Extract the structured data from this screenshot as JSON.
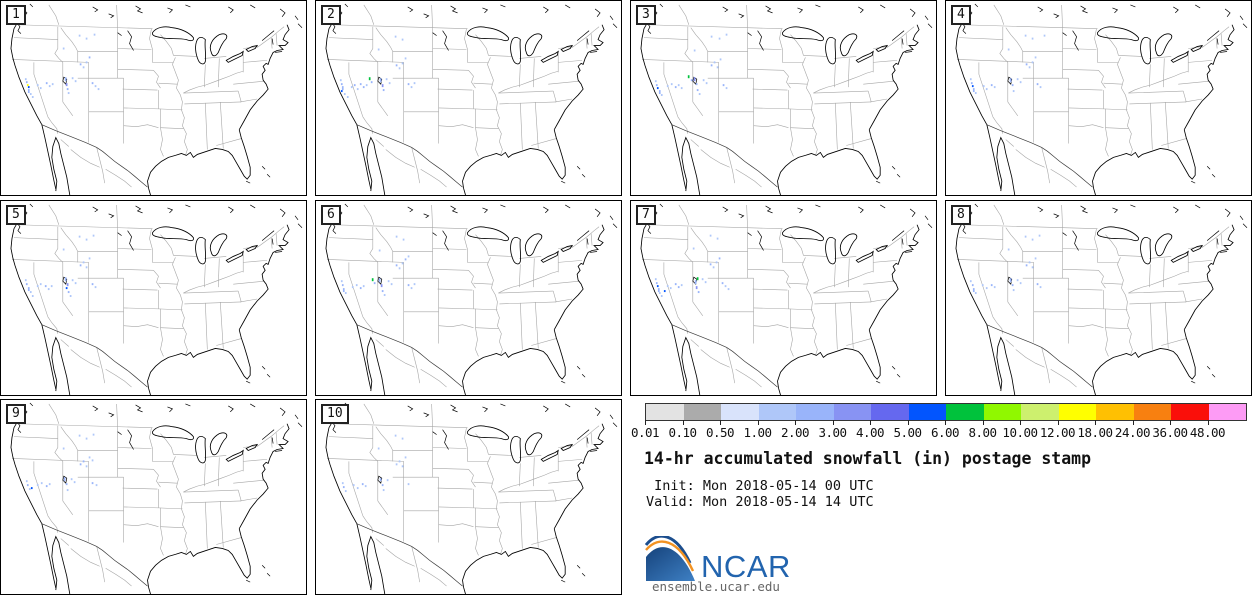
{
  "title": "14-hr accumulated snowfall (in) postage stamp",
  "times": {
    "init": " Init: Mon 2018-05-14 00 UTC",
    "valid": "Valid: Mon 2018-05-14 14 UTC"
  },
  "logo": {
    "text": "NCAR",
    "url": "ensemble.ucar.edu",
    "blue": "#2264AE",
    "dark_blue": "#16437C",
    "orange": "#F29222"
  },
  "colorbar": {
    "units": "in",
    "ticks": [
      "0.01",
      "0.10",
      "0.50",
      "1.00",
      "2.00",
      "3.00",
      "4.00",
      "5.00",
      "6.00",
      "8.00",
      "10.00",
      "12.00",
      "18.00",
      "24.00",
      "36.00",
      "48.00"
    ],
    "colors": [
      "#E3E3E3",
      "#ABABAB",
      "#D9E3FB",
      "#AFC7F9",
      "#99B4FA",
      "#8893F3",
      "#6568EF",
      "#0255FE",
      "#00C23C",
      "#90F800",
      "#CDF06E",
      "#FFFF00",
      "#FFC002",
      "#F88010",
      "#FA0F0A",
      "#FD9BF5"
    ]
  },
  "panels": [
    {
      "label": "1",
      "snow": [
        [
          24,
          78,
          3
        ],
        [
          25,
          81,
          4
        ],
        [
          26,
          84,
          11
        ],
        [
          27,
          86,
          7
        ],
        [
          27,
          89,
          4,
          4
        ],
        [
          29,
          93,
          3
        ],
        [
          31,
          96,
          3
        ],
        [
          36,
          84,
          3
        ],
        [
          39,
          87,
          3
        ],
        [
          45,
          82,
          4
        ],
        [
          48,
          85,
          3
        ],
        [
          51,
          83,
          3
        ],
        [
          64,
          77,
          4,
          4
        ],
        [
          65,
          83,
          5,
          3
        ],
        [
          66,
          88,
          4
        ],
        [
          67,
          92,
          3
        ],
        [
          71,
          77,
          3
        ],
        [
          74,
          80,
          3
        ],
        [
          79,
          63,
          4
        ],
        [
          82,
          66,
          3
        ],
        [
          85,
          61,
          3
        ],
        [
          88,
          56,
          4
        ],
        [
          78,
          34,
          3
        ],
        [
          85,
          37,
          3
        ],
        [
          93,
          33,
          3
        ],
        [
          62,
          47,
          3
        ],
        [
          91,
          82,
          4
        ],
        [
          94,
          85,
          3
        ],
        [
          97,
          88,
          3
        ]
      ]
    },
    {
      "label": "2",
      "snow": [
        [
          24,
          79,
          3
        ],
        [
          25,
          83,
          4
        ],
        [
          26,
          86,
          4,
          4
        ],
        [
          25,
          90,
          7
        ],
        [
          28,
          93,
          3
        ],
        [
          31,
          96,
          3
        ],
        [
          35,
          86,
          3
        ],
        [
          38,
          84,
          4
        ],
        [
          41,
          88,
          3
        ],
        [
          44,
          83,
          4
        ],
        [
          47,
          86,
          4
        ],
        [
          50,
          84,
          3
        ],
        [
          53,
          77,
          8,
          3
        ],
        [
          55,
          81,
          4
        ],
        [
          64,
          78,
          4,
          4
        ],
        [
          66,
          84,
          5,
          3
        ],
        [
          67,
          89,
          4
        ],
        [
          70,
          78,
          3
        ],
        [
          73,
          82,
          3
        ],
        [
          80,
          64,
          4
        ],
        [
          83,
          67,
          3
        ],
        [
          86,
          62,
          3
        ],
        [
          89,
          57,
          3
        ],
        [
          79,
          35,
          3
        ],
        [
          86,
          38,
          3
        ],
        [
          62,
          48,
          3
        ],
        [
          92,
          83,
          4
        ],
        [
          95,
          86,
          3
        ],
        [
          98,
          82,
          3
        ]
      ]
    },
    {
      "label": "3",
      "snow": [
        [
          24,
          80,
          3
        ],
        [
          25,
          84,
          4
        ],
        [
          26,
          87,
          7
        ],
        [
          28,
          90,
          4,
          4
        ],
        [
          30,
          94,
          3
        ],
        [
          36,
          85,
          3
        ],
        [
          40,
          83,
          3
        ],
        [
          44,
          86,
          4
        ],
        [
          47,
          84,
          3
        ],
        [
          50,
          87,
          3
        ],
        [
          57,
          75,
          8,
          3
        ],
        [
          60,
          79,
          4
        ],
        [
          63,
          77,
          5,
          4
        ],
        [
          65,
          83,
          4
        ],
        [
          66,
          89,
          4
        ],
        [
          68,
          93,
          3
        ],
        [
          72,
          79,
          3
        ],
        [
          75,
          82,
          3
        ],
        [
          80,
          64,
          4
        ],
        [
          83,
          61,
          3
        ],
        [
          86,
          66,
          3
        ],
        [
          89,
          58,
          3
        ],
        [
          80,
          35,
          3
        ],
        [
          88,
          37,
          3
        ],
        [
          95,
          33,
          3
        ],
        [
          63,
          49,
          3
        ],
        [
          92,
          84,
          4
        ],
        [
          95,
          87,
          3
        ]
      ]
    },
    {
      "label": "4",
      "snow": [
        [
          24,
          78,
          3
        ],
        [
          25,
          82,
          4
        ],
        [
          26,
          85,
          7
        ],
        [
          27,
          88,
          4,
          4
        ],
        [
          29,
          92,
          3
        ],
        [
          37,
          85,
          3
        ],
        [
          40,
          88,
          3
        ],
        [
          45,
          84,
          4
        ],
        [
          48,
          86,
          3
        ],
        [
          64,
          78,
          4,
          4
        ],
        [
          66,
          84,
          4
        ],
        [
          67,
          90,
          3
        ],
        [
          71,
          78,
          3
        ],
        [
          74,
          81,
          3
        ],
        [
          80,
          63,
          4
        ],
        [
          83,
          66,
          3
        ],
        [
          86,
          61,
          3
        ],
        [
          89,
          56,
          3
        ],
        [
          79,
          34,
          3
        ],
        [
          86,
          37,
          3
        ],
        [
          62,
          48,
          3
        ],
        [
          91,
          83,
          4
        ],
        [
          94,
          86,
          3
        ],
        [
          98,
          34,
          3
        ]
      ]
    },
    {
      "label": "5",
      "snow": [
        [
          24,
          79,
          3
        ],
        [
          25,
          83,
          4
        ],
        [
          27,
          87,
          4,
          4
        ],
        [
          29,
          91,
          3
        ],
        [
          31,
          95,
          3
        ],
        [
          36,
          85,
          3
        ],
        [
          39,
          83,
          3
        ],
        [
          44,
          85,
          4
        ],
        [
          47,
          88,
          3
        ],
        [
          50,
          85,
          3
        ],
        [
          64,
          77,
          4,
          4
        ],
        [
          65,
          87,
          7
        ],
        [
          66,
          83,
          5,
          3
        ],
        [
          67,
          91,
          4
        ],
        [
          69,
          95,
          3
        ],
        [
          71,
          79,
          3
        ],
        [
          74,
          82,
          3
        ],
        [
          79,
          64,
          4
        ],
        [
          82,
          61,
          3
        ],
        [
          85,
          66,
          3
        ],
        [
          88,
          57,
          3
        ],
        [
          78,
          35,
          3
        ],
        [
          85,
          38,
          3
        ],
        [
          92,
          34,
          3
        ],
        [
          62,
          48,
          3
        ],
        [
          91,
          83,
          4
        ],
        [
          94,
          86,
          3
        ]
      ]
    },
    {
      "label": "6",
      "snow": [
        [
          25,
          80,
          3
        ],
        [
          26,
          84,
          4
        ],
        [
          27,
          88,
          4,
          4
        ],
        [
          29,
          92,
          3
        ],
        [
          36,
          86,
          3
        ],
        [
          40,
          84,
          3
        ],
        [
          44,
          87,
          4
        ],
        [
          47,
          85,
          3
        ],
        [
          56,
          78,
          8,
          3
        ],
        [
          58,
          82,
          4
        ],
        [
          63,
          78,
          4,
          4
        ],
        [
          65,
          84,
          5,
          3
        ],
        [
          66,
          90,
          4
        ],
        [
          68,
          94,
          3
        ],
        [
          72,
          80,
          3
        ],
        [
          75,
          83,
          3
        ],
        [
          80,
          64,
          4
        ],
        [
          83,
          67,
          3
        ],
        [
          86,
          62,
          3
        ],
        [
          89,
          58,
          4
        ],
        [
          92,
          55,
          3
        ],
        [
          80,
          35,
          3
        ],
        [
          87,
          38,
          3
        ],
        [
          63,
          49,
          3
        ],
        [
          92,
          84,
          4
        ],
        [
          95,
          87,
          3
        ],
        [
          98,
          83,
          3
        ]
      ]
    },
    {
      "label": "7",
      "snow": [
        [
          24,
          78,
          3
        ],
        [
          25,
          82,
          4
        ],
        [
          26,
          85,
          7
        ],
        [
          27,
          88,
          4,
          4
        ],
        [
          28,
          92,
          3
        ],
        [
          30,
          95,
          3
        ],
        [
          33,
          90,
          7
        ],
        [
          36,
          85,
          3
        ],
        [
          39,
          87,
          3
        ],
        [
          44,
          83,
          4
        ],
        [
          47,
          86,
          4
        ],
        [
          50,
          84,
          3
        ],
        [
          66,
          77,
          8,
          3
        ],
        [
          64,
          80,
          4,
          4
        ],
        [
          65,
          86,
          5,
          3
        ],
        [
          67,
          91,
          4
        ],
        [
          71,
          78,
          3
        ],
        [
          74,
          81,
          3
        ],
        [
          79,
          63,
          4
        ],
        [
          82,
          66,
          3
        ],
        [
          85,
          61,
          3
        ],
        [
          88,
          57,
          4
        ],
        [
          79,
          34,
          3
        ],
        [
          86,
          37,
          3
        ],
        [
          62,
          47,
          3
        ],
        [
          91,
          82,
          4
        ],
        [
          94,
          85,
          3
        ],
        [
          97,
          88,
          3
        ]
      ]
    },
    {
      "label": "8",
      "snow": [
        [
          24,
          80,
          3
        ],
        [
          26,
          84,
          4
        ],
        [
          27,
          88,
          4,
          4
        ],
        [
          29,
          92,
          3
        ],
        [
          36,
          84,
          3
        ],
        [
          40,
          87,
          3
        ],
        [
          45,
          84,
          4
        ],
        [
          48,
          86,
          3
        ],
        [
          64,
          78,
          4,
          4
        ],
        [
          66,
          84,
          4
        ],
        [
          67,
          89,
          3
        ],
        [
          71,
          79,
          3
        ],
        [
          74,
          82,
          3
        ],
        [
          80,
          64,
          4
        ],
        [
          83,
          61,
          3
        ],
        [
          86,
          66,
          3
        ],
        [
          89,
          57,
          3
        ],
        [
          79,
          35,
          3
        ],
        [
          86,
          38,
          3
        ],
        [
          93,
          34,
          3
        ],
        [
          62,
          48,
          3
        ],
        [
          91,
          83,
          4
        ],
        [
          94,
          86,
          3
        ]
      ]
    },
    {
      "label": "9",
      "snow": [
        [
          25,
          81,
          3
        ],
        [
          26,
          85,
          4
        ],
        [
          28,
          89,
          3
        ],
        [
          30,
          88,
          7
        ],
        [
          36,
          85,
          3
        ],
        [
          40,
          83,
          3
        ],
        [
          45,
          86,
          4
        ],
        [
          48,
          84,
          3
        ],
        [
          63,
          78,
          4,
          4
        ],
        [
          65,
          84,
          4
        ],
        [
          66,
          90,
          3
        ],
        [
          70,
          79,
          3
        ],
        [
          73,
          82,
          3
        ],
        [
          79,
          64,
          4
        ],
        [
          82,
          61,
          4
        ],
        [
          85,
          66,
          3
        ],
        [
          88,
          57,
          3
        ],
        [
          91,
          60,
          3
        ],
        [
          78,
          35,
          3
        ],
        [
          85,
          38,
          3
        ],
        [
          92,
          34,
          3
        ],
        [
          62,
          48,
          3
        ],
        [
          91,
          83,
          4
        ],
        [
          95,
          85,
          3
        ]
      ]
    },
    {
      "label": "10",
      "snow": [
        [
          26,
          83,
          3
        ],
        [
          27,
          87,
          4
        ],
        [
          29,
          91,
          3
        ],
        [
          37,
          85,
          3
        ],
        [
          41,
          88,
          3
        ],
        [
          46,
          84,
          4
        ],
        [
          49,
          86,
          3
        ],
        [
          64,
          79,
          4,
          3
        ],
        [
          66,
          85,
          4
        ],
        [
          67,
          90,
          3
        ],
        [
          71,
          80,
          3
        ],
        [
          80,
          64,
          3
        ],
        [
          83,
          61,
          3
        ],
        [
          86,
          66,
          3
        ],
        [
          89,
          57,
          3
        ],
        [
          79,
          35,
          3
        ],
        [
          86,
          38,
          3
        ],
        [
          62,
          48,
          3
        ],
        [
          92,
          84,
          3
        ]
      ]
    }
  ]
}
